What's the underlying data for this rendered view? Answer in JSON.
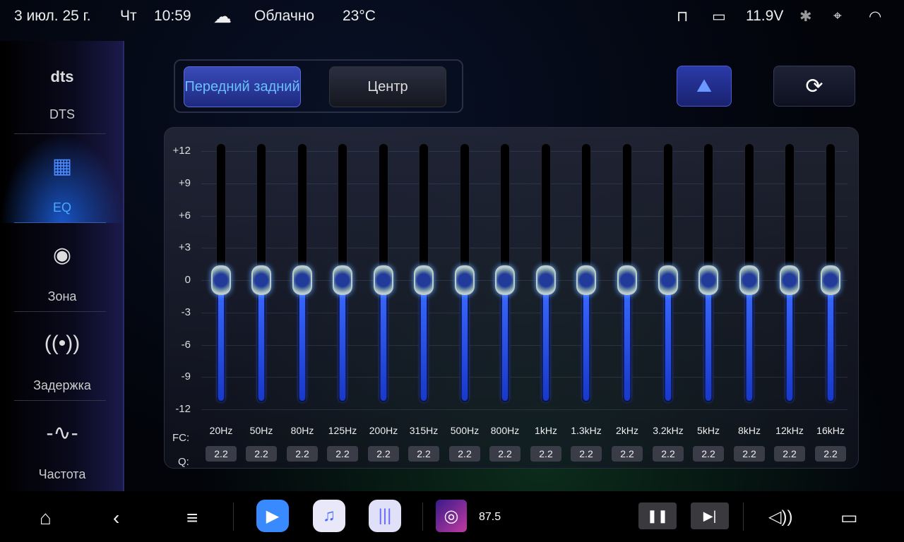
{
  "status": {
    "date": "3 июл. 25 г.",
    "weekday": "Чт",
    "time": "10:59",
    "weather": "Облачно",
    "temp": "23°C",
    "voltage": "11.9V"
  },
  "sidebar": {
    "items": [
      {
        "label": "DTS",
        "icon": "dts-logo"
      },
      {
        "label": "EQ",
        "icon": "eq-icon",
        "active": true
      },
      {
        "label": "Зона",
        "icon": "zone-icon"
      },
      {
        "label": "Задержка",
        "icon": "delay-icon"
      },
      {
        "label": "Частота",
        "icon": "frequency-icon"
      }
    ]
  },
  "channels": {
    "front_rear": "Передний задний",
    "center": "Центр",
    "selected": "front_rear"
  },
  "eq": {
    "y_labels": [
      "+12",
      "+9",
      "+6",
      "+3",
      "0",
      "-3",
      "-6",
      "-9",
      "-12"
    ],
    "fc_label": "FC:",
    "q_label": "Q:",
    "bands": [
      {
        "fc": "20Hz",
        "q": "2.2",
        "gain": 0
      },
      {
        "fc": "50Hz",
        "q": "2.2",
        "gain": 0
      },
      {
        "fc": "80Hz",
        "q": "2.2",
        "gain": 0
      },
      {
        "fc": "125Hz",
        "q": "2.2",
        "gain": 0
      },
      {
        "fc": "200Hz",
        "q": "2.2",
        "gain": 0
      },
      {
        "fc": "315Hz",
        "q": "2.2",
        "gain": 0
      },
      {
        "fc": "500Hz",
        "q": "2.2",
        "gain": 0
      },
      {
        "fc": "800Hz",
        "q": "2.2",
        "gain": 0
      },
      {
        "fc": "1kHz",
        "q": "2.2",
        "gain": 0
      },
      {
        "fc": "1.3kHz",
        "q": "2.2",
        "gain": 0
      },
      {
        "fc": "2kHz",
        "q": "2.2",
        "gain": 0
      },
      {
        "fc": "3.2kHz",
        "q": "2.2",
        "gain": 0
      },
      {
        "fc": "5kHz",
        "q": "2.2",
        "gain": 0
      },
      {
        "fc": "8kHz",
        "q": "2.2",
        "gain": 0
      },
      {
        "fc": "12kHz",
        "q": "2.2",
        "gain": 0
      },
      {
        "fc": "16kHz",
        "q": "2.2",
        "gain": 0
      }
    ]
  },
  "media": {
    "station": "87.5"
  },
  "colors": {
    "accent": "#2f6bff",
    "active_text": "#4aa8ff"
  }
}
